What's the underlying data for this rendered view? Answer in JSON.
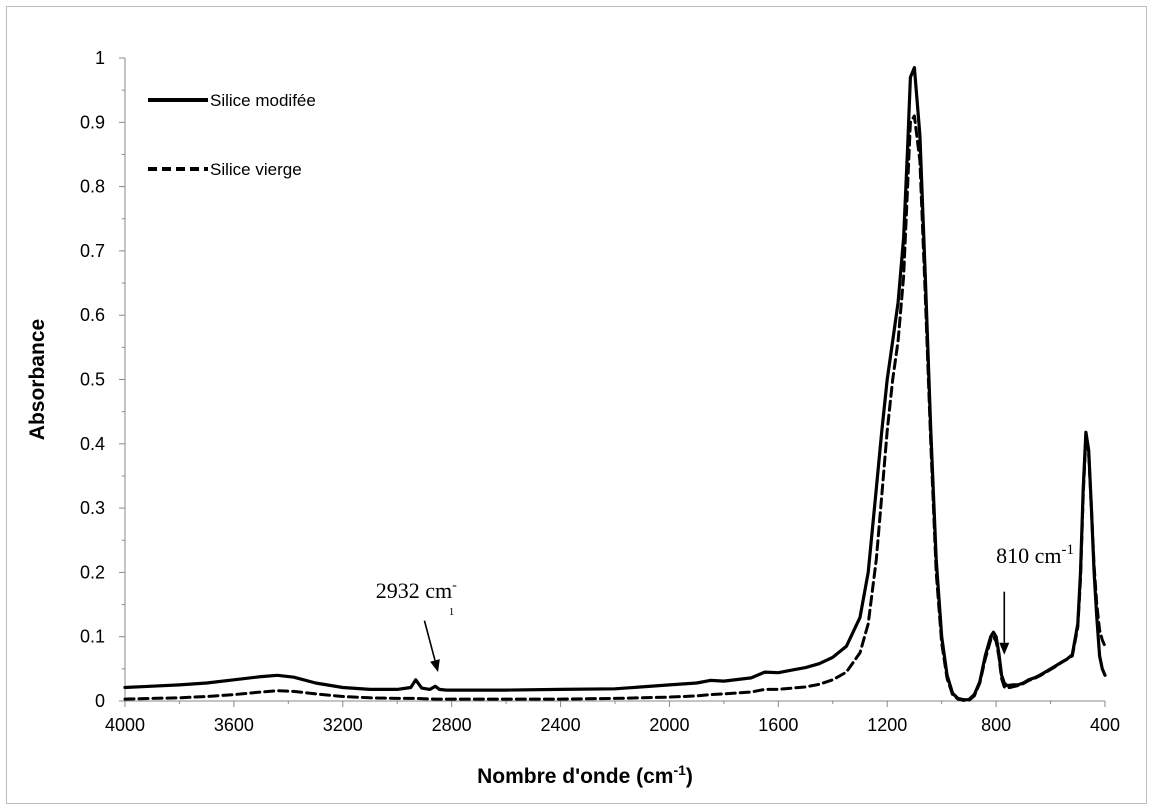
{
  "chart_data": {
    "type": "line",
    "title": "",
    "xlabel": "Nombre d'onde (cm",
    "xlabel_sup": "-1",
    "xlabel_end": ")",
    "ylabel": "Absorbance",
    "xlim": [
      4000,
      400
    ],
    "ylim": [
      0,
      1
    ],
    "x_reversed": true,
    "xticks": [
      4000,
      3600,
      3200,
      2800,
      2400,
      2000,
      1600,
      1200,
      800,
      400
    ],
    "xtick_labels": [
      "4000",
      "3600",
      "3200",
      "2800",
      "2400",
      "2000",
      "1600",
      "1200",
      "800",
      "400"
    ],
    "yticks": [
      0,
      0.1,
      0.2,
      0.3,
      0.4,
      0.5,
      0.6,
      0.7,
      0.8,
      0.9,
      1
    ],
    "ytick_labels": [
      "0",
      "0.1",
      "0.2",
      "0.3",
      "0.4",
      "0.5",
      "0.6",
      "0.7",
      "0.8",
      "0.9",
      "1"
    ],
    "grid": false,
    "legend_position": "top-left",
    "series": [
      {
        "name": "Silice modifée",
        "style": "solid",
        "color": "#000000",
        "x": [
          4000,
          3900,
          3800,
          3700,
          3600,
          3500,
          3440,
          3380,
          3300,
          3200,
          3100,
          3000,
          2950,
          2932,
          2910,
          2880,
          2860,
          2845,
          2820,
          2800,
          2600,
          2400,
          2200,
          2000,
          1900,
          1850,
          1800,
          1700,
          1650,
          1600,
          1550,
          1500,
          1450,
          1400,
          1350,
          1300,
          1270,
          1240,
          1220,
          1200,
          1180,
          1160,
          1140,
          1125,
          1115,
          1100,
          1080,
          1060,
          1040,
          1020,
          1000,
          980,
          960,
          940,
          920,
          900,
          880,
          860,
          840,
          820,
          810,
          800,
          790,
          780,
          770,
          760,
          740,
          720,
          700,
          680,
          660,
          640,
          620,
          600,
          580,
          560,
          540,
          520,
          500,
          490,
          480,
          470,
          460,
          450,
          440,
          430,
          420,
          410,
          400
        ],
        "y": [
          0.021,
          0.023,
          0.025,
          0.028,
          0.033,
          0.038,
          0.04,
          0.037,
          0.028,
          0.021,
          0.018,
          0.018,
          0.021,
          0.033,
          0.02,
          0.018,
          0.023,
          0.018,
          0.017,
          0.017,
          0.017,
          0.018,
          0.019,
          0.025,
          0.028,
          0.032,
          0.031,
          0.036,
          0.045,
          0.044,
          0.048,
          0.052,
          0.058,
          0.068,
          0.085,
          0.13,
          0.2,
          0.33,
          0.42,
          0.5,
          0.56,
          0.62,
          0.72,
          0.86,
          0.97,
          0.985,
          0.88,
          0.66,
          0.42,
          0.22,
          0.1,
          0.04,
          0.012,
          0.004,
          0.002,
          0.002,
          0.01,
          0.03,
          0.07,
          0.1,
          0.107,
          0.1,
          0.075,
          0.04,
          0.028,
          0.024,
          0.025,
          0.025,
          0.028,
          0.033,
          0.036,
          0.04,
          0.045,
          0.05,
          0.055,
          0.06,
          0.065,
          0.072,
          0.12,
          0.2,
          0.33,
          0.418,
          0.39,
          0.3,
          0.2,
          0.13,
          0.07,
          0.05,
          0.04
        ]
      },
      {
        "name": "Silice vierge",
        "style": "dashed",
        "color": "#000000",
        "x": [
          4000,
          3900,
          3800,
          3700,
          3600,
          3500,
          3440,
          3380,
          3300,
          3200,
          3100,
          3000,
          2932,
          2860,
          2800,
          2600,
          2400,
          2200,
          2000,
          1900,
          1850,
          1800,
          1700,
          1650,
          1600,
          1550,
          1500,
          1450,
          1400,
          1350,
          1300,
          1270,
          1240,
          1220,
          1200,
          1180,
          1160,
          1140,
          1125,
          1115,
          1100,
          1080,
          1060,
          1040,
          1020,
          1000,
          980,
          960,
          940,
          920,
          900,
          880,
          860,
          840,
          820,
          810,
          800,
          790,
          780,
          770,
          760,
          740,
          720,
          700,
          680,
          660,
          640,
          620,
          600,
          580,
          560,
          540,
          520,
          500,
          490,
          480,
          470,
          460,
          450,
          440,
          430,
          420,
          410,
          400
        ],
        "y": [
          0.003,
          0.004,
          0.005,
          0.007,
          0.01,
          0.014,
          0.016,
          0.015,
          0.011,
          0.007,
          0.005,
          0.004,
          0.004,
          0.003,
          0.003,
          0.003,
          0.003,
          0.004,
          0.006,
          0.008,
          0.01,
          0.011,
          0.014,
          0.018,
          0.018,
          0.02,
          0.022,
          0.026,
          0.033,
          0.045,
          0.075,
          0.12,
          0.22,
          0.32,
          0.42,
          0.5,
          0.56,
          0.66,
          0.8,
          0.9,
          0.91,
          0.84,
          0.63,
          0.4,
          0.2,
          0.09,
          0.035,
          0.01,
          0.003,
          0.001,
          0.001,
          0.008,
          0.028,
          0.065,
          0.095,
          0.1,
          0.093,
          0.07,
          0.035,
          0.022,
          0.02,
          0.022,
          0.024,
          0.027,
          0.032,
          0.035,
          0.039,
          0.044,
          0.049,
          0.054,
          0.06,
          0.065,
          0.07,
          0.115,
          0.19,
          0.32,
          0.41,
          0.385,
          0.3,
          0.21,
          0.15,
          0.11,
          0.095,
          0.085
        ]
      }
    ],
    "annotations": [
      {
        "text": "2932 cm",
        "sup": "-",
        "sub": "1",
        "arrow_from": [
          2900,
          0.125
        ],
        "arrow_to": [
          2850,
          0.045
        ],
        "text_at": [
          2930,
          0.16
        ]
      },
      {
        "text": "810 cm",
        "sup": "-1",
        "arrow_from": [
          770,
          0.17
        ],
        "arrow_to": [
          770,
          0.072
        ],
        "text_at": [
          800,
          0.215
        ]
      }
    ]
  }
}
